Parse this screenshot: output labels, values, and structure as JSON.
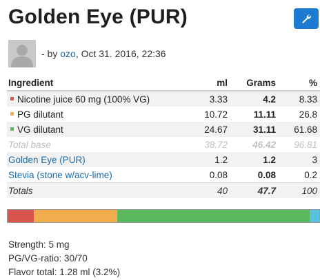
{
  "page": {
    "title": "Golden Eye (PUR)",
    "edit_icon": "wrench-icon",
    "author_prefix": "- by",
    "author": "ozo",
    "date": ", Oct 31. 2016, 22:36"
  },
  "table": {
    "headers": [
      "Ingredient",
      "ml",
      "Grams",
      "%"
    ],
    "base_rows": [
      {
        "name": "Nicotine juice 60 mg (100% VG)",
        "ml": "3.33",
        "grams": "4.2",
        "pct": "8.33",
        "color": "#d9534f"
      },
      {
        "name": "PG dilutant",
        "ml": "10.72",
        "grams": "11.11",
        "pct": "26.8",
        "color": "#f0ad4e"
      },
      {
        "name": "VG dilutant",
        "ml": "24.67",
        "grams": "31.11",
        "pct": "61.68",
        "color": "#5cb85c"
      }
    ],
    "total_base": {
      "name": "Total base",
      "ml": "38.72",
      "grams": "46.42",
      "pct": "96.81"
    },
    "flavors": [
      {
        "name": "Golden Eye (PUR)",
        "ml": "1.2",
        "grams": "1.2",
        "pct": "3"
      },
      {
        "name": "Stevia (stone w/acv-lime)",
        "ml": "0.08",
        "grams": "0.08",
        "pct": "0.2"
      }
    ],
    "totals": {
      "name": "Totals",
      "ml": "40",
      "grams": "47.7",
      "pct": "100"
    }
  },
  "bar": {
    "segments": [
      {
        "fraction": 0.0833,
        "color": "#d9534f"
      },
      {
        "fraction": 0.268,
        "color": "#f0ad4e"
      },
      {
        "fraction": 0.6168,
        "color": "#5cb85c"
      },
      {
        "fraction": 0.032,
        "color": "#5bc0de"
      }
    ]
  },
  "summary": {
    "strength": "Strength: 5 mg",
    "ratio": "PG/VG-ratio: 30/70",
    "flavor_total": "Flavor total: 1.28 ml (3.2%)"
  }
}
